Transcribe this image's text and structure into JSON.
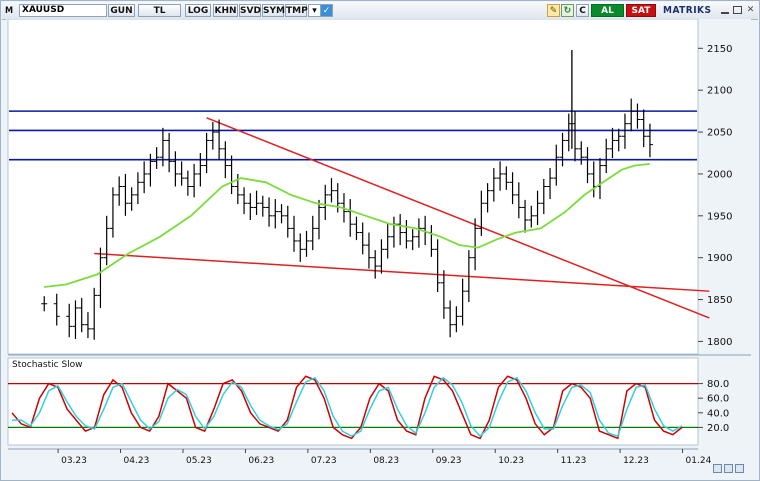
{
  "toolbar": {
    "menu_letter": "M",
    "symbol": "XAUUSD",
    "buttons": [
      "GUN",
      "TL",
      "LOG",
      "KHN",
      "SVD",
      "SYM",
      "TMP"
    ],
    "c_label": "C",
    "buy_label": "AL",
    "sell_label": "SAT",
    "brand": "MATRIKS",
    "colors": {
      "buy": "#0a8a2a",
      "sell": "#c81010",
      "brand_accent": "#f08a00"
    }
  },
  "icons": [
    "menu-dropdown-icon",
    "checkbox-icon",
    "edit-icon",
    "refresh-icon",
    "minimize-icon",
    "maximize-icon",
    "close-icon"
  ],
  "chart_data": [
    {
      "type": "ohlc",
      "symbol": "XAUUSD",
      "y_ticks": [
        1800,
        1850,
        1900,
        1950,
        2000,
        2050,
        2100,
        2150
      ],
      "ylim": [
        1785,
        2185
      ],
      "x_ticks": [
        "03.23",
        "04.23",
        "05.23",
        "06.23",
        "07.23",
        "08.23",
        "09.23",
        "10.23",
        "11.23",
        "12.23",
        "01.24"
      ],
      "x_range": [
        0,
        10.6
      ],
      "price_path": [
        [
          -0.35,
          1845
        ],
        [
          -0.15,
          1830
        ],
        [
          0.05,
          1818
        ],
        [
          0.15,
          1840
        ],
        [
          0.25,
          1820
        ],
        [
          0.35,
          1815
        ],
        [
          0.45,
          1855
        ],
        [
          0.55,
          1900
        ],
        [
          0.65,
          1935
        ],
        [
          0.75,
          1975
        ],
        [
          0.85,
          1985
        ],
        [
          0.95,
          1965
        ],
        [
          1.05,
          1975
        ],
        [
          1.15,
          1990
        ],
        [
          1.25,
          2000
        ],
        [
          1.35,
          2015
        ],
        [
          1.45,
          2020
        ],
        [
          1.55,
          2040
        ],
        [
          1.65,
          2015
        ],
        [
          1.75,
          2000
        ],
        [
          1.85,
          1995
        ],
        [
          1.95,
          1985
        ],
        [
          2.05,
          2000
        ],
        [
          2.15,
          2010
        ],
        [
          2.25,
          2040
        ],
        [
          2.35,
          2050
        ],
        [
          2.45,
          2030
        ],
        [
          2.55,
          2010
        ],
        [
          2.65,
          1985
        ],
        [
          2.75,
          1975
        ],
        [
          2.85,
          1965
        ],
        [
          2.95,
          1960
        ],
        [
          3.05,
          1965
        ],
        [
          3.15,
          1960
        ],
        [
          3.25,
          1950
        ],
        [
          3.35,
          1955
        ],
        [
          3.45,
          1950
        ],
        [
          3.55,
          1935
        ],
        [
          3.65,
          1920
        ],
        [
          3.75,
          1910
        ],
        [
          3.85,
          1920
        ],
        [
          3.95,
          1935
        ],
        [
          4.05,
          1960
        ],
        [
          4.15,
          1975
        ],
        [
          4.25,
          1980
        ],
        [
          4.35,
          1965
        ],
        [
          4.45,
          1955
        ],
        [
          4.55,
          1940
        ],
        [
          4.65,
          1930
        ],
        [
          4.75,
          1915
        ],
        [
          4.85,
          1900
        ],
        [
          4.95,
          1890
        ],
        [
          5.05,
          1910
        ],
        [
          5.15,
          1925
        ],
        [
          5.25,
          1940
        ],
        [
          5.35,
          1930
        ],
        [
          5.45,
          1920
        ],
        [
          5.55,
          1925
        ],
        [
          5.65,
          1935
        ],
        [
          5.75,
          1930
        ],
        [
          5.85,
          1910
        ],
        [
          5.95,
          1870
        ],
        [
          6.05,
          1840
        ],
        [
          6.15,
          1820
        ],
        [
          6.25,
          1830
        ],
        [
          6.35,
          1860
        ],
        [
          6.45,
          1900
        ],
        [
          6.55,
          1935
        ],
        [
          6.65,
          1965
        ],
        [
          6.75,
          1980
        ],
        [
          6.85,
          1995
        ],
        [
          6.95,
          2000
        ],
        [
          7.05,
          1990
        ],
        [
          7.15,
          1975
        ],
        [
          7.25,
          1960
        ],
        [
          7.35,
          1945
        ],
        [
          7.45,
          1950
        ],
        [
          7.55,
          1965
        ],
        [
          7.65,
          1985
        ],
        [
          7.75,
          1995
        ],
        [
          7.85,
          2020
        ],
        [
          7.95,
          2040
        ],
        [
          8.05,
          2060
        ],
        [
          8.15,
          2030
        ],
        [
          8.25,
          2020
        ],
        [
          8.35,
          2000
        ],
        [
          8.45,
          1985
        ],
        [
          8.55,
          2010
        ],
        [
          8.65,
          2030
        ],
        [
          8.75,
          2040
        ],
        [
          8.85,
          2045
        ],
        [
          8.95,
          2060
        ],
        [
          9.05,
          2075
        ],
        [
          9.15,
          2065
        ],
        [
          9.25,
          2045
        ],
        [
          9.35,
          2035
        ]
      ],
      "sma_line": [
        [
          -0.35,
          1865
        ],
        [
          0.0,
          1868
        ],
        [
          0.5,
          1880
        ],
        [
          1.0,
          1905
        ],
        [
          1.5,
          1925
        ],
        [
          2.0,
          1950
        ],
        [
          2.5,
          1985
        ],
        [
          2.8,
          1995
        ],
        [
          3.2,
          1990
        ],
        [
          3.6,
          1975
        ],
        [
          4.0,
          1965
        ],
        [
          4.4,
          1960
        ],
        [
          4.8,
          1950
        ],
        [
          5.2,
          1940
        ],
        [
          5.6,
          1935
        ],
        [
          6.0,
          1925
        ],
        [
          6.3,
          1915
        ],
        [
          6.6,
          1912
        ],
        [
          6.9,
          1922
        ],
        [
          7.2,
          1930
        ],
        [
          7.6,
          1935
        ],
        [
          8.0,
          1955
        ],
        [
          8.3,
          1975
        ],
        [
          8.6,
          1990
        ],
        [
          8.9,
          2005
        ],
        [
          9.1,
          2010
        ],
        [
          9.35,
          2012
        ]
      ],
      "horizontal_levels": [
        2075,
        2052,
        2017
      ],
      "trendlines": [
        {
          "from": [
            2.25,
            2067
          ],
          "to": [
            10.3,
            1828
          ]
        },
        {
          "from": [
            0.45,
            1905
          ],
          "to": [
            10.3,
            1860
          ]
        }
      ],
      "colors": {
        "bars": "#000000",
        "sma": "#7cdc3c",
        "levels": "#0a1aa0",
        "trendlines": "#e02020"
      }
    },
    {
      "type": "line",
      "title": "Stochastic Slow",
      "y_ticks": [
        20,
        40,
        60,
        80
      ],
      "ylim": [
        0,
        100
      ],
      "overbought": 80,
      "oversold": 20,
      "series": [
        {
          "color": "#d00000",
          "values": [
            40,
            25,
            20,
            60,
            80,
            75,
            45,
            30,
            15,
            20,
            65,
            85,
            75,
            40,
            20,
            15,
            35,
            80,
            70,
            60,
            20,
            15,
            45,
            80,
            85,
            70,
            40,
            25,
            20,
            15,
            30,
            75,
            90,
            85,
            60,
            20,
            10,
            5,
            20,
            60,
            80,
            70,
            30,
            15,
            10,
            60,
            90,
            85,
            70,
            40,
            10,
            5,
            30,
            75,
            90,
            85,
            60,
            25,
            10,
            20,
            70,
            80,
            75,
            60,
            15,
            10,
            5,
            70,
            80,
            75,
            30,
            15,
            10,
            20
          ]
        },
        {
          "color": "#30d0e0",
          "values": [
            30,
            30,
            22,
            40,
            70,
            77,
            55,
            35,
            22,
            18,
            45,
            75,
            80,
            55,
            30,
            18,
            28,
            60,
            72,
            65,
            35,
            18,
            35,
            65,
            82,
            75,
            50,
            30,
            22,
            17,
            25,
            55,
            82,
            88,
            70,
            35,
            15,
            8,
            15,
            45,
            70,
            75,
            45,
            22,
            12,
            40,
            75,
            88,
            78,
            55,
            22,
            8,
            20,
            55,
            82,
            88,
            70,
            40,
            18,
            18,
            50,
            75,
            78,
            68,
            30,
            12,
            8,
            45,
            75,
            78,
            45,
            22,
            15,
            22
          ]
        }
      ],
      "colors": {
        "overbought_line": "#c00000",
        "oversold_line": "#008000"
      }
    }
  ]
}
